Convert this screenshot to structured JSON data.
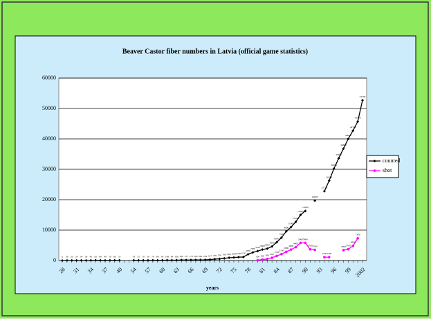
{
  "chart_data": {
    "type": "line",
    "title": "Beaver Castor fiber numbers in Latvia (official game statistics)",
    "x_label": "years",
    "categories": [
      "28",
      null,
      null,
      "31",
      null,
      null,
      "34",
      null,
      null,
      "37",
      null,
      null,
      "40",
      null,
      null,
      "54",
      null,
      null,
      "57",
      null,
      null,
      "60",
      null,
      null,
      "63",
      null,
      null,
      "66",
      null,
      null,
      "69",
      null,
      null,
      "72",
      null,
      null,
      "75",
      null,
      null,
      "78",
      null,
      null,
      "81",
      null,
      null,
      "84",
      null,
      null,
      "87",
      null,
      null,
      "90",
      null,
      null,
      "93",
      null,
      null,
      "96",
      null,
      null,
      "99",
      null,
      null,
      "2002"
    ],
    "series": [
      {
        "name": "counted",
        "color": "#000000",
        "marker": "diamond",
        "values": [
          0,
          30,
          20,
          24,
          34,
          30,
          45,
          82,
          66,
          40,
          50,
          60,
          55,
          null,
          null,
          76,
          55,
          70,
          58,
          79,
          66,
          93,
          108,
          99,
          106,
          162,
          157,
          178,
          200,
          202,
          234,
          317,
          459,
          550,
          700,
          900,
          1000,
          1100,
          1150,
          2050,
          2660,
          3100,
          3600,
          3900,
          4600,
          6000,
          7500,
          9600,
          11000,
          12700,
          15000,
          16300,
          null,
          19693,
          null,
          22770,
          26260,
          30200,
          33600,
          36800,
          40000,
          42700,
          45700,
          52700
        ]
      },
      {
        "name": "shot",
        "color": "#ff00ff",
        "marker": "circle",
        "values": [
          null,
          null,
          null,
          null,
          null,
          null,
          null,
          null,
          null,
          null,
          null,
          null,
          null,
          null,
          null,
          null,
          null,
          null,
          null,
          null,
          null,
          null,
          null,
          null,
          null,
          null,
          null,
          null,
          null,
          null,
          null,
          null,
          null,
          null,
          null,
          null,
          null,
          null,
          null,
          null,
          null,
          100,
          300,
          500,
          900,
          1500,
          2100,
          2900,
          3600,
          4400,
          5800,
          5800,
          3700,
          3500,
          null,
          1100,
          1100,
          null,
          null,
          3400,
          3700,
          4800,
          7300,
          null
        ]
      }
    ],
    "ylim": [
      0,
      60000
    ],
    "yticks": [
      0,
      10000,
      20000,
      30000,
      40000,
      50000,
      60000
    ],
    "grid": true,
    "legend": "right"
  }
}
